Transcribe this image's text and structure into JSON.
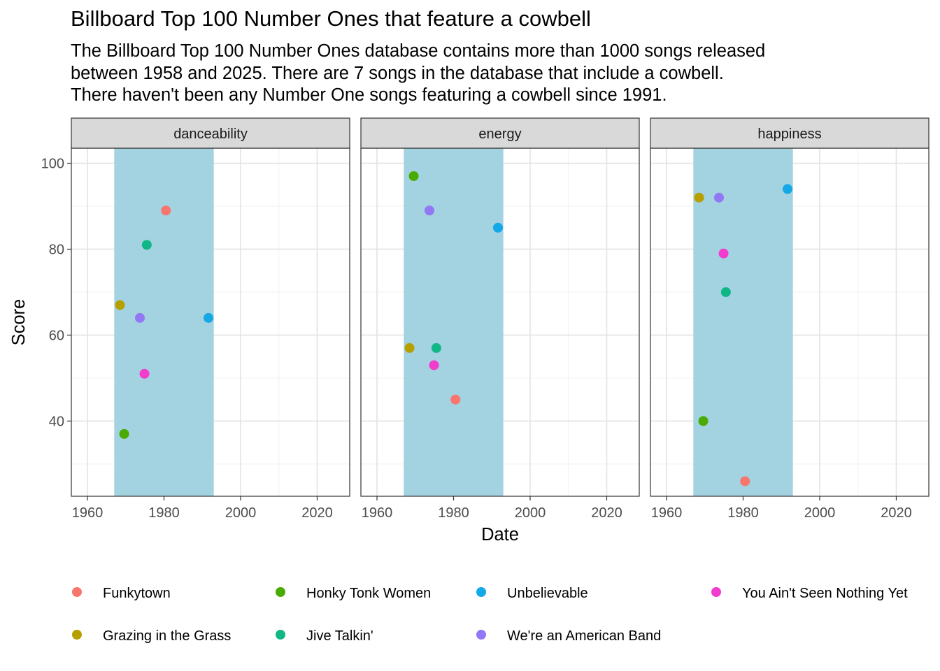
{
  "chart_data": {
    "type": "scatter",
    "title": "Billboard Top 100 Number Ones that feature a cowbell",
    "subtitle": [
      "The Billboard Top 100 Number Ones database contains more than 1000 songs released",
      "between 1958 and 2025. There are 7 songs in the database that include a cowbell.",
      "There haven't been any Number One songs featuring a cowbell since 1991."
    ],
    "xlabel": "Date",
    "ylabel": "Score",
    "xlim": [
      1955.8,
      2028.5
    ],
    "ylim": [
      22.5,
      103.5
    ],
    "x_ticks": [
      1960,
      1980,
      2000,
      2020
    ],
    "y_ticks": [
      40,
      60,
      80,
      100
    ],
    "grid": true,
    "highlight_band": {
      "x_start": 1967.0,
      "x_end": 1993.0,
      "color": "#a3d2e0"
    },
    "legend_position": "bottom",
    "series": [
      {
        "name": "Funkytown",
        "color": "#F8766D",
        "x": 1980.5,
        "values": {
          "danceability": 89,
          "energy": 45,
          "happiness": 26
        }
      },
      {
        "name": "Grazing in the Grass",
        "color": "#B79F00",
        "x": 1968.5,
        "values": {
          "danceability": 67,
          "energy": 57,
          "happiness": 92
        }
      },
      {
        "name": "Honky Tonk Women",
        "color": "#49AB03",
        "x": 1969.6,
        "values": {
          "danceability": 37,
          "energy": 97,
          "happiness": 40
        }
      },
      {
        "name": "Jive Talkin'",
        "color": "#10B784",
        "x": 1975.5,
        "values": {
          "danceability": 81,
          "energy": 57,
          "happiness": 70
        }
      },
      {
        "name": "Unbelievable",
        "color": "#14A8E6",
        "x": 1991.6,
        "values": {
          "danceability": 64,
          "energy": 85,
          "happiness": 94
        }
      },
      {
        "name": "We're an American Band",
        "color": "#9278F4",
        "x": 1973.7,
        "values": {
          "danceability": 64,
          "energy": 89,
          "happiness": 92
        }
      },
      {
        "name": "You Ain't Seen Nothing Yet",
        "color": "#F33BCD",
        "x": 1974.9,
        "values": {
          "danceability": 51,
          "energy": 53,
          "happiness": 79
        }
      }
    ],
    "facets": [
      "danceability",
      "energy",
      "happiness"
    ]
  }
}
